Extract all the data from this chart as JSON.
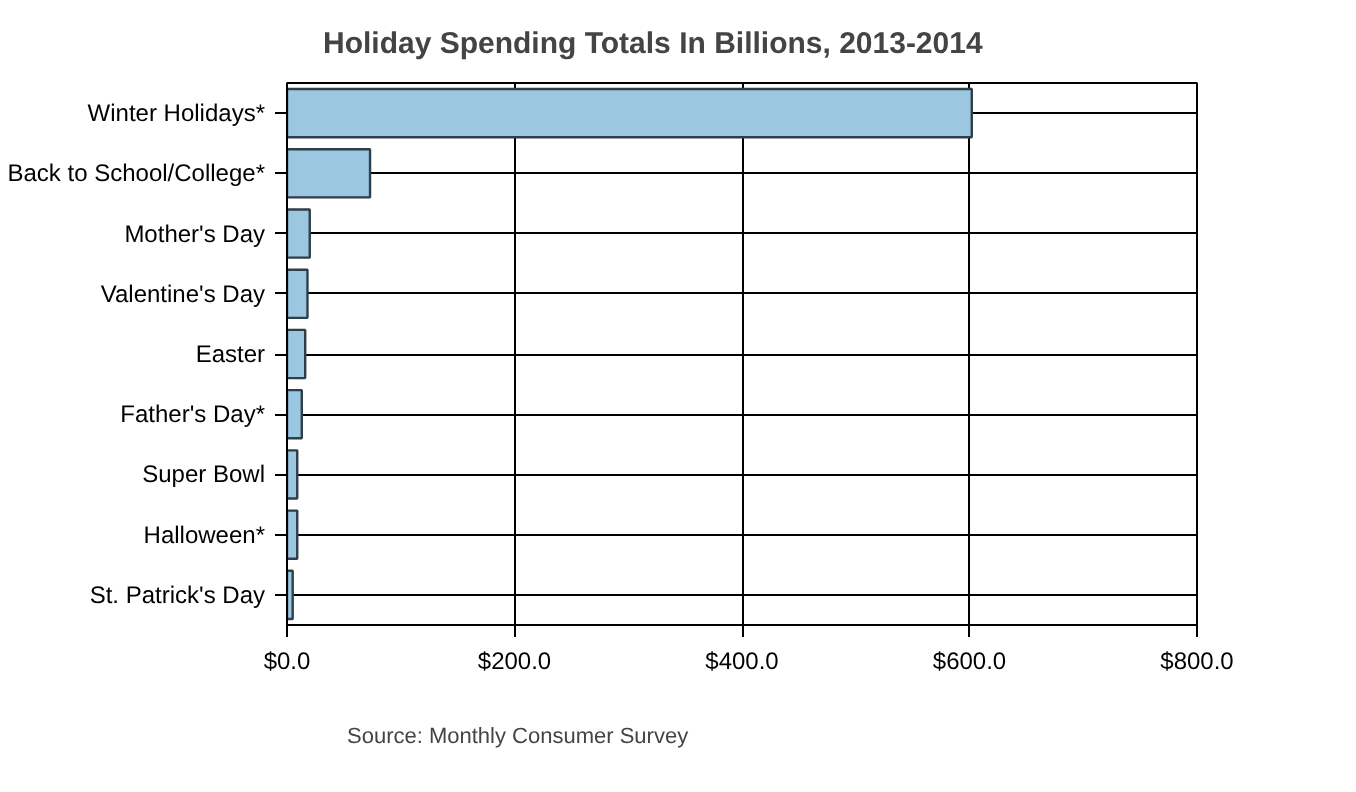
{
  "chart_data": {
    "type": "bar",
    "orientation": "horizontal",
    "title": "Holiday Spending Totals In Billions, 2013-2014",
    "categories": [
      "Winter Holidays*",
      "Back to School/College*",
      "Mother's Day",
      "Valentine's Day",
      "Easter",
      "Father's Day*",
      "Super Bowl",
      "Halloween*",
      "St. Patrick's Day"
    ],
    "values": [
      602,
      73,
      20,
      18,
      16,
      13,
      9,
      9,
      5
    ],
    "color": "#9cc7e0",
    "xlim": [
      0,
      800
    ],
    "xticks": [
      {
        "value": 0,
        "label": "$0.0"
      },
      {
        "value": 200,
        "label": "$200.0"
      },
      {
        "value": 400,
        "label": "$400.0"
      },
      {
        "value": 600,
        "label": "$600.0"
      },
      {
        "value": 800,
        "label": "$800.0"
      }
    ],
    "grid": true,
    "annotations": [
      "Source: Monthly Consumer Survey"
    ]
  }
}
